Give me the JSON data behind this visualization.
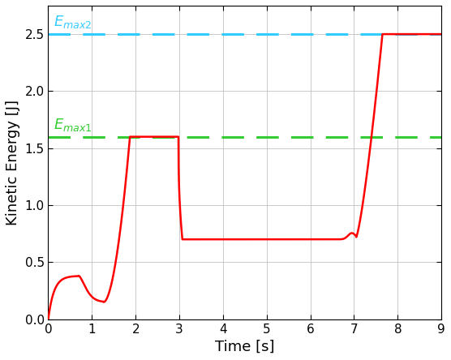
{
  "title": "",
  "xlabel": "Time [s]",
  "ylabel": "Kinetic Energy [J]",
  "xlim": [
    0,
    9
  ],
  "ylim": [
    0,
    2.75
  ],
  "emax1": 1.6,
  "emax2": 2.5,
  "emax1_color": "#33CC33",
  "emax2_color": "#33CCFF",
  "line_color": "#FF0000",
  "emax1_label": "$E_{max1}$",
  "emax2_label": "$E_{max2}$",
  "xticks": [
    0,
    1,
    2,
    3,
    4,
    5,
    6,
    7,
    8,
    9
  ],
  "yticks": [
    0,
    0.5,
    1.0,
    1.5,
    2.0,
    2.5
  ],
  "background_color": "#FFFFFF",
  "grid_color": "#BBBBBB",
  "figsize": [
    5.56,
    4.44
  ],
  "dpi": 100
}
